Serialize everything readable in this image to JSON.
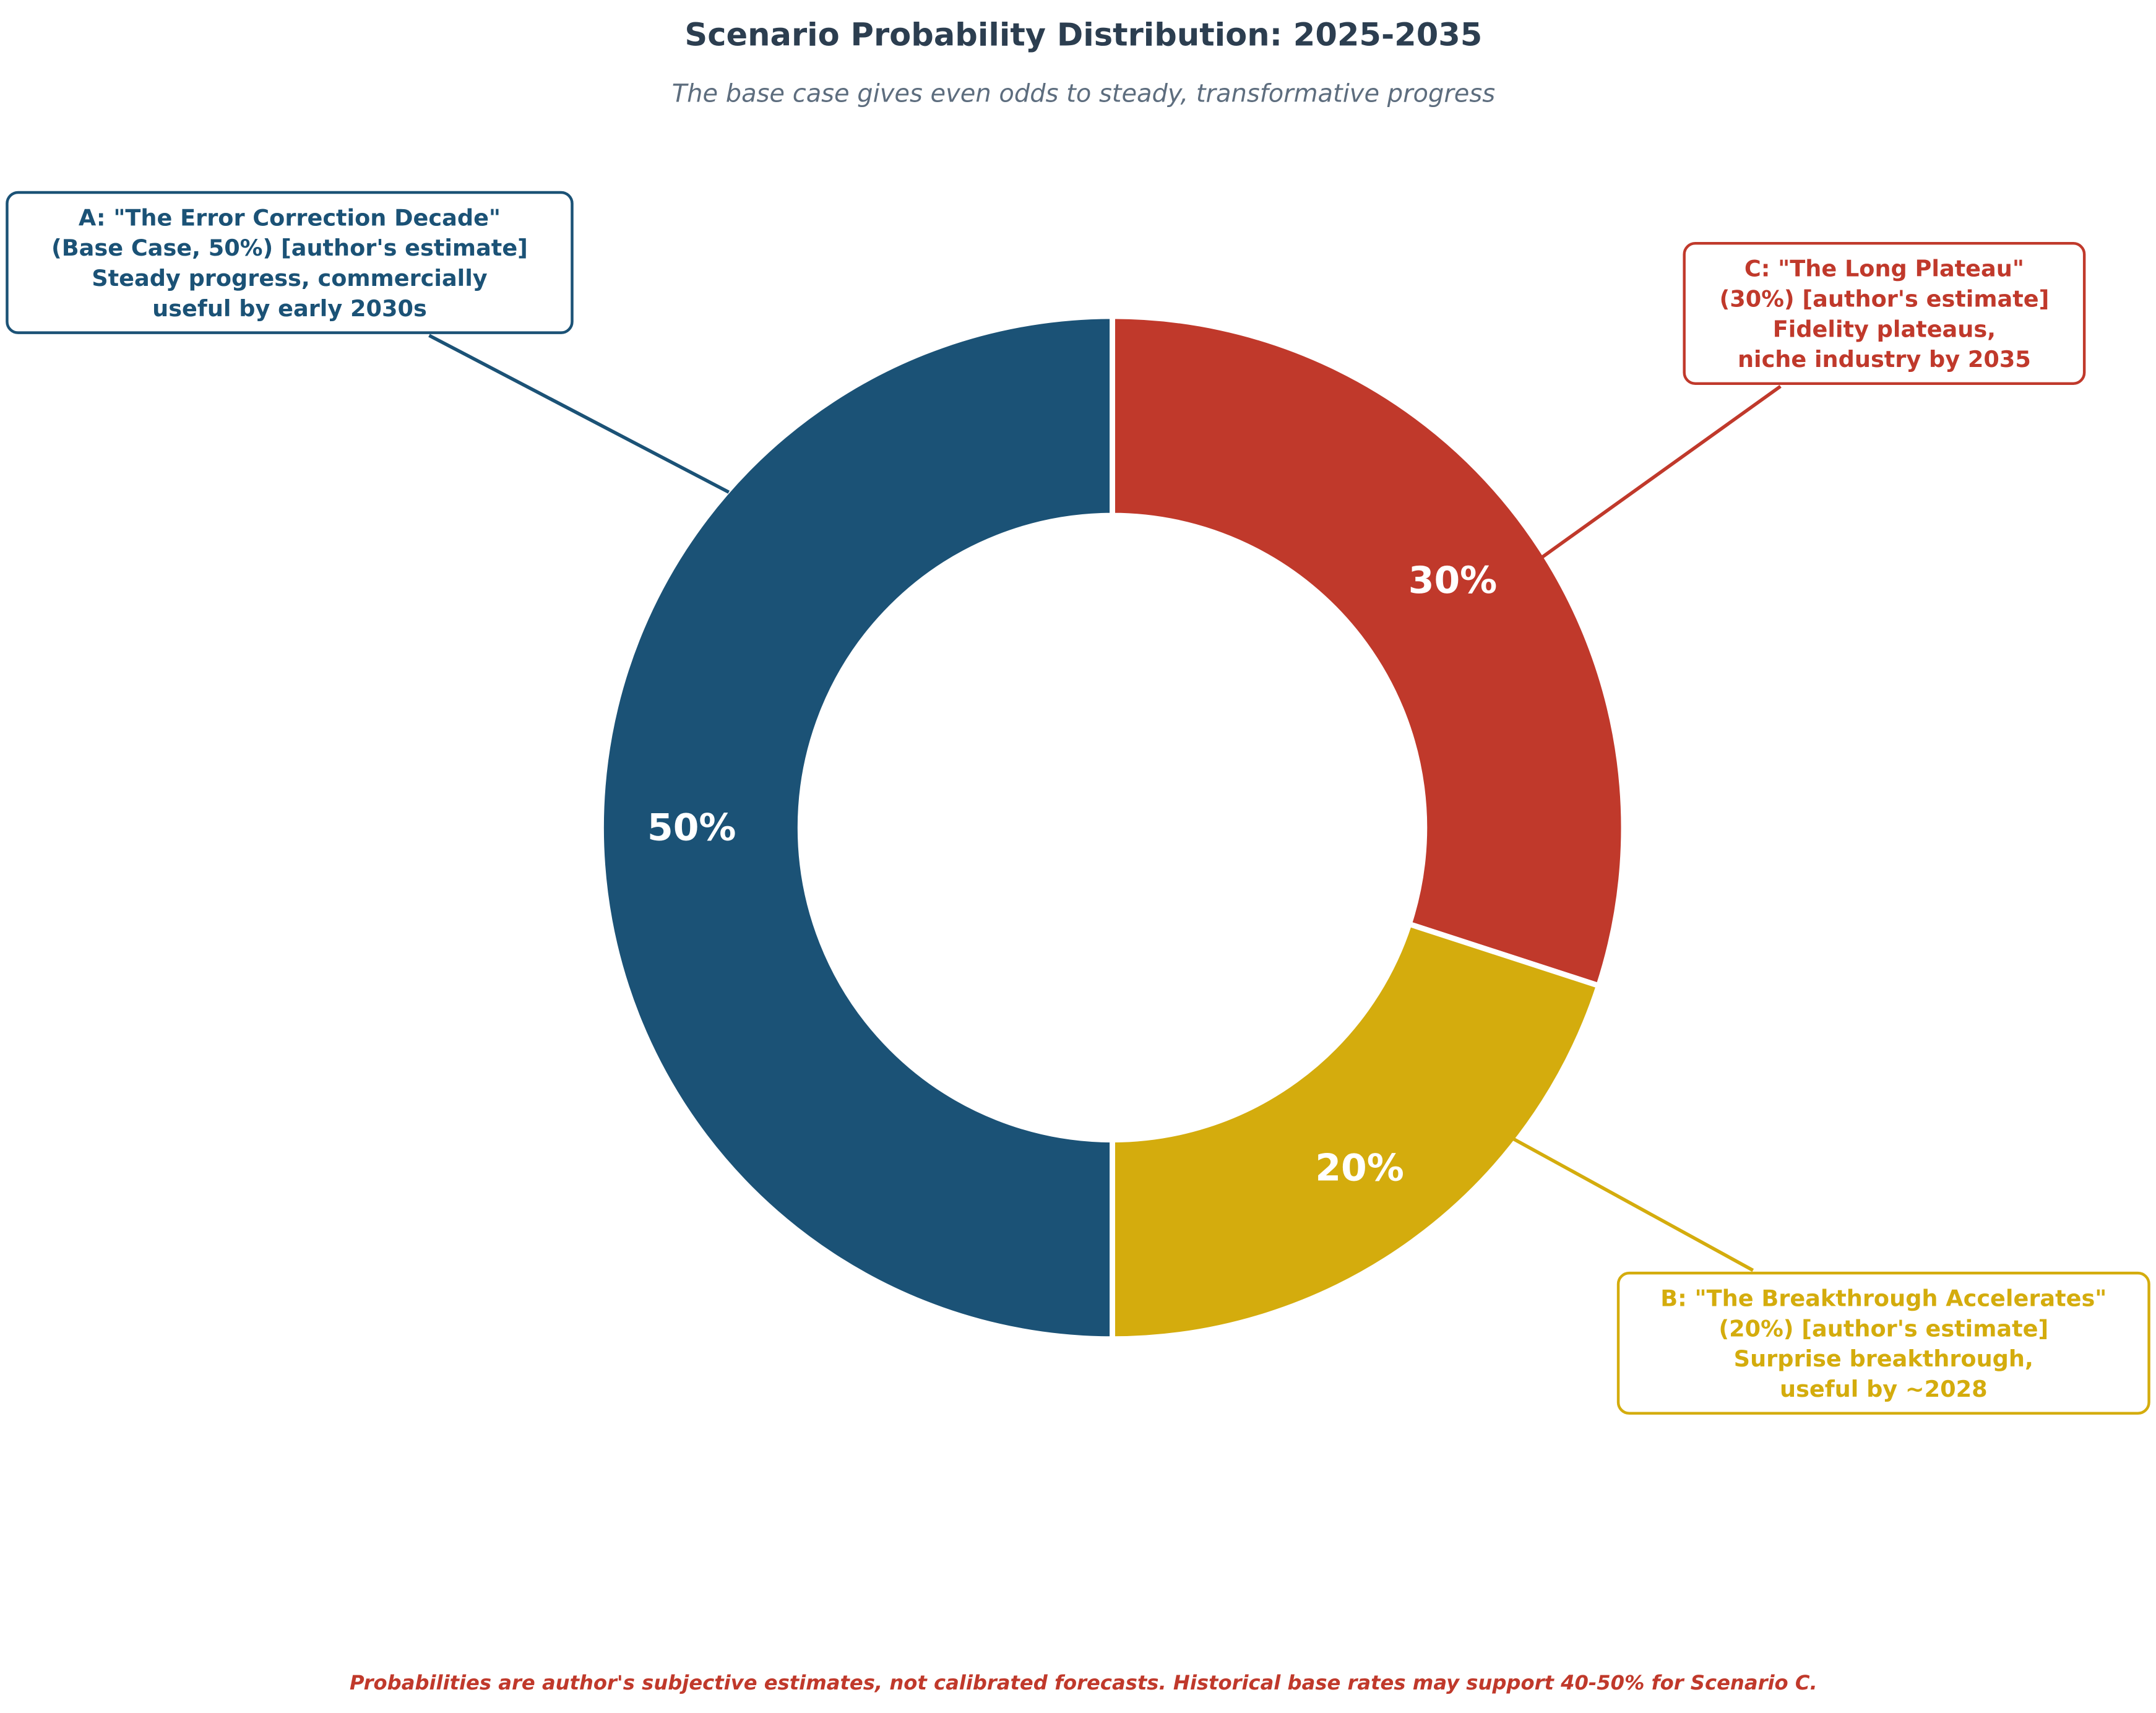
{
  "chart_data": {
    "type": "pie",
    "variant": "donut",
    "title": "Scenario Probability Distribution: 2025-2035",
    "subtitle": "The base case gives even odds to steady, transformative progress",
    "order": "clockwise from top",
    "slices": [
      {
        "key": "C",
        "value": 30,
        "label": "30%",
        "color": "#c0392b",
        "annotation": [
          "C: \"The Long Plateau\"",
          "(30%) [author's estimate]",
          "Fidelity plateaus,",
          "niche industry by 2035"
        ]
      },
      {
        "key": "B",
        "value": 20,
        "label": "20%",
        "color": "#d4ac0d",
        "annotation": [
          "B: \"The Breakthrough Accelerates\"",
          "(20%) [author's estimate]",
          "Surprise breakthrough,",
          "useful by ~2028"
        ]
      },
      {
        "key": "A",
        "value": 50,
        "label": "50%",
        "color": "#1b5276",
        "annotation": [
          "A: \"The Error Correction Decade\"",
          "(Base Case, 50%) [author's estimate]",
          "Steady progress, commercially",
          "useful by early 2030s"
        ]
      }
    ],
    "footnote": "Probabilities are author's subjective estimates, not calibrated forecasts. Historical base rates may support 40-50% for Scenario C.",
    "footnote_color": "#c0392b",
    "title_color": "#2c3e50"
  }
}
